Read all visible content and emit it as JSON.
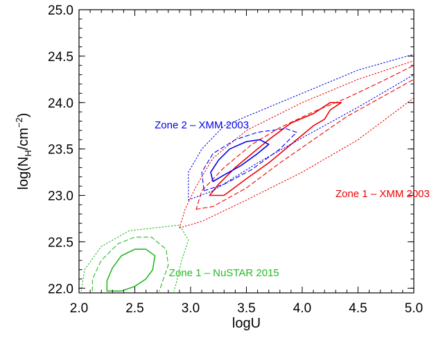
{
  "chart_data": {
    "type": "line",
    "title": "",
    "xlabel": "logU",
    "ylabel": {
      "main": "log(N",
      "sub": "H",
      "mid": "/cm",
      "sup": "−2",
      "end": ")"
    },
    "xlim": [
      2.0,
      5.0
    ],
    "ylim": [
      21.95,
      25.0
    ],
    "xticks": [
      "2.0",
      "2.5",
      "3.0",
      "3.5",
      "4.0",
      "4.5",
      "5.0"
    ],
    "yticks": [
      "22.0",
      "22.5",
      "23.0",
      "23.5",
      "24.0",
      "24.5",
      "25.0"
    ],
    "grid": false,
    "annotations": [
      {
        "text": "Zone 2 – XMM 2003",
        "x": 3.1,
        "y": 23.72,
        "color": "#0000ee"
      },
      {
        "text": "Zone 1 – XMM 2003",
        "x": 4.72,
        "y": 22.98,
        "color": "#ee0000"
      },
      {
        "text": "Zone 1 – NuSTAR 2015",
        "x": 3.3,
        "y": 22.13,
        "color": "#22bb22"
      }
    ],
    "series": [
      {
        "group": "zone1-xmm",
        "style": "solid",
        "color": "#ee0000",
        "points": [
          [
            3.17,
            23.0
          ],
          [
            3.3,
            23.0
          ],
          [
            3.5,
            23.18
          ],
          [
            3.7,
            23.35
          ],
          [
            3.9,
            23.55
          ],
          [
            4.1,
            23.75
          ],
          [
            4.2,
            23.82
          ],
          [
            4.25,
            23.92
          ],
          [
            4.35,
            24.0
          ],
          [
            4.25,
            24.0
          ],
          [
            4.1,
            23.88
          ],
          [
            3.9,
            23.78
          ],
          [
            3.7,
            23.6
          ],
          [
            3.55,
            23.45
          ],
          [
            3.4,
            23.3
          ],
          [
            3.25,
            23.12
          ],
          [
            3.17,
            23.0
          ]
        ]
      },
      {
        "group": "zone1-xmm",
        "style": "dashed",
        "color": "#ee0000",
        "points": [
          [
            3.05,
            22.85
          ],
          [
            3.2,
            22.88
          ],
          [
            3.5,
            23.08
          ],
          [
            3.8,
            23.35
          ],
          [
            4.1,
            23.6
          ],
          [
            4.4,
            23.85
          ],
          [
            4.7,
            24.05
          ],
          [
            5.0,
            24.25
          ],
          [
            5.0,
            24.4
          ],
          [
            4.7,
            24.22
          ],
          [
            4.4,
            24.05
          ],
          [
            4.1,
            23.9
          ],
          [
            3.8,
            23.73
          ],
          [
            3.55,
            23.55
          ],
          [
            3.3,
            23.3
          ],
          [
            3.1,
            23.05
          ],
          [
            3.05,
            22.85
          ]
        ]
      },
      {
        "group": "zone1-xmm",
        "style": "dotted",
        "color": "#ee0000",
        "points": [
          [
            2.9,
            22.65
          ],
          [
            3.1,
            22.72
          ],
          [
            3.5,
            22.95
          ],
          [
            4.0,
            23.25
          ],
          [
            4.5,
            23.6
          ],
          [
            5.0,
            24.05
          ],
          [
            5.0,
            24.45
          ],
          [
            4.5,
            24.25
          ],
          [
            4.0,
            24.0
          ],
          [
            3.5,
            23.7
          ],
          [
            3.2,
            23.4
          ],
          [
            3.05,
            23.1
          ],
          [
            2.95,
            22.85
          ],
          [
            2.9,
            22.65
          ]
        ]
      },
      {
        "group": "zone2-xmm",
        "style": "solid",
        "color": "#0000ee",
        "points": [
          [
            3.2,
            23.15
          ],
          [
            3.3,
            23.22
          ],
          [
            3.45,
            23.32
          ],
          [
            3.6,
            23.45
          ],
          [
            3.7,
            23.55
          ],
          [
            3.62,
            23.6
          ],
          [
            3.5,
            23.58
          ],
          [
            3.35,
            23.5
          ],
          [
            3.25,
            23.38
          ],
          [
            3.18,
            23.25
          ],
          [
            3.2,
            23.15
          ]
        ]
      },
      {
        "group": "zone2-xmm",
        "style": "dashed",
        "color": "#0000ee",
        "points": [
          [
            3.12,
            23.05
          ],
          [
            3.3,
            23.12
          ],
          [
            3.55,
            23.28
          ],
          [
            3.8,
            23.5
          ],
          [
            3.95,
            23.68
          ],
          [
            3.85,
            23.72
          ],
          [
            3.6,
            23.68
          ],
          [
            3.4,
            23.6
          ],
          [
            3.2,
            23.45
          ],
          [
            3.1,
            23.25
          ],
          [
            3.12,
            23.05
          ]
        ]
      },
      {
        "group": "zone2-xmm",
        "style": "dotted",
        "color": "#0000ee",
        "points": [
          [
            2.98,
            22.95
          ],
          [
            3.2,
            23.05
          ],
          [
            3.6,
            23.35
          ],
          [
            4.0,
            23.62
          ],
          [
            4.5,
            23.95
          ],
          [
            5.0,
            24.3
          ],
          [
            5.0,
            24.52
          ],
          [
            4.5,
            24.35
          ],
          [
            4.0,
            24.1
          ],
          [
            3.6,
            23.9
          ],
          [
            3.3,
            23.75
          ],
          [
            3.1,
            23.5
          ],
          [
            2.98,
            23.25
          ],
          [
            2.98,
            22.95
          ]
        ]
      },
      {
        "group": "zone1-nustar",
        "style": "solid",
        "color": "#22bb22",
        "points": [
          [
            2.25,
            21.97
          ],
          [
            2.38,
            21.97
          ],
          [
            2.5,
            22.02
          ],
          [
            2.6,
            22.1
          ],
          [
            2.66,
            22.2
          ],
          [
            2.68,
            22.35
          ],
          [
            2.6,
            22.42
          ],
          [
            2.5,
            22.42
          ],
          [
            2.38,
            22.35
          ],
          [
            2.3,
            22.22
          ],
          [
            2.25,
            22.08
          ],
          [
            2.25,
            21.97
          ]
        ]
      },
      {
        "group": "zone1-nustar",
        "style": "dashed",
        "color": "#22bb22",
        "points": [
          [
            2.12,
            21.97
          ],
          [
            2.12,
            22.1
          ],
          [
            2.2,
            22.3
          ],
          [
            2.35,
            22.48
          ],
          [
            2.5,
            22.55
          ],
          [
            2.65,
            22.55
          ],
          [
            2.78,
            22.42
          ],
          [
            2.8,
            22.25
          ],
          [
            2.75,
            22.08
          ],
          [
            2.72,
            21.97
          ]
        ]
      },
      {
        "group": "zone1-nustar",
        "style": "dotted",
        "color": "#22bb22",
        "points": [
          [
            2.02,
            21.97
          ],
          [
            2.05,
            22.2
          ],
          [
            2.2,
            22.45
          ],
          [
            2.45,
            22.62
          ],
          [
            2.9,
            22.68
          ],
          [
            2.98,
            22.52
          ],
          [
            2.92,
            22.3
          ],
          [
            2.87,
            22.05
          ],
          [
            2.85,
            21.97
          ]
        ]
      }
    ]
  }
}
